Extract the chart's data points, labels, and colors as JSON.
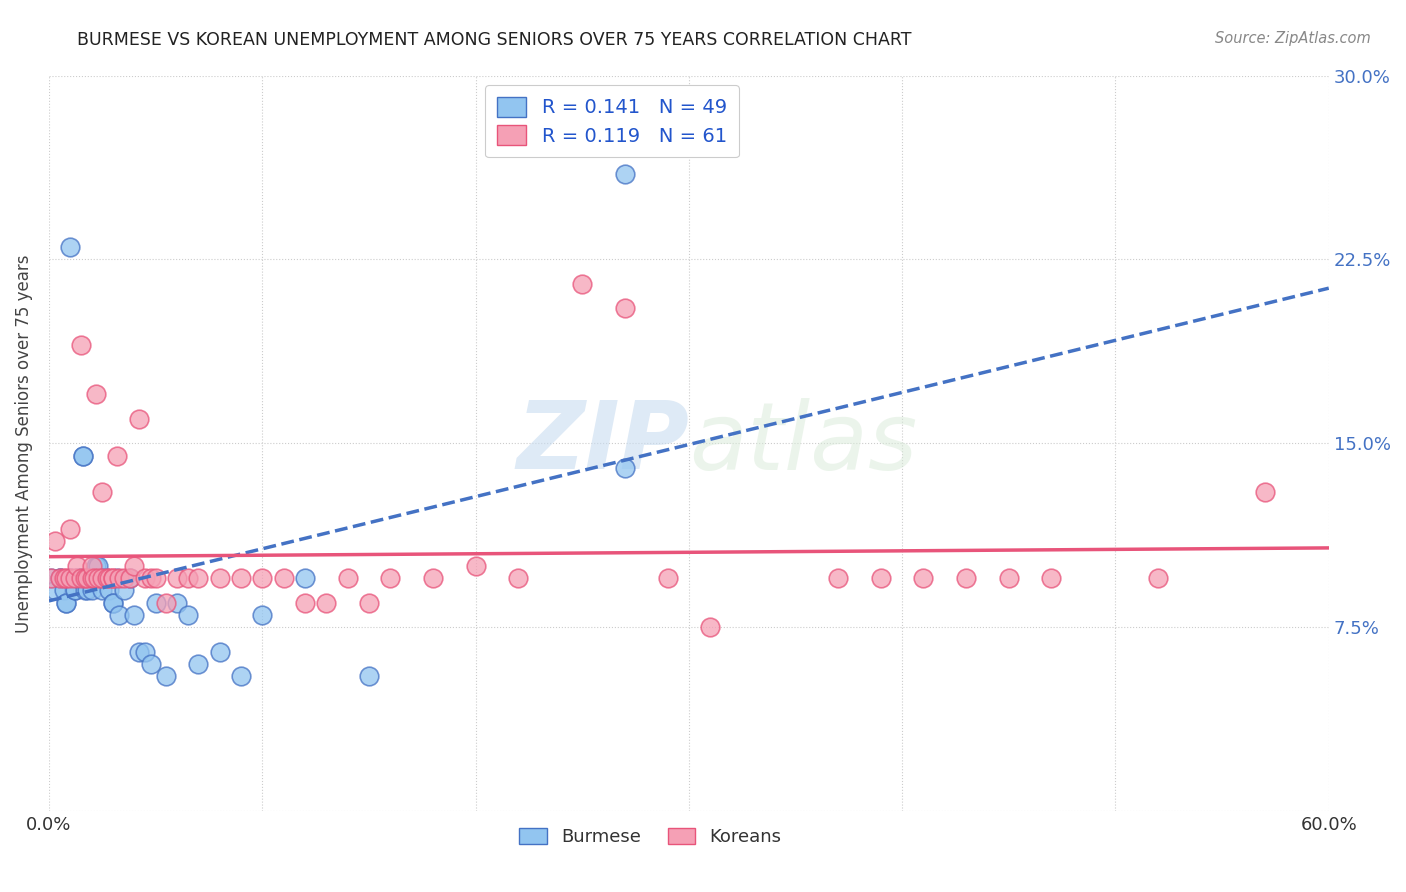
{
  "title": "BURMESE VS KOREAN UNEMPLOYMENT AMONG SENIORS OVER 75 YEARS CORRELATION CHART",
  "source": "Source: ZipAtlas.com",
  "ylabel": "Unemployment Among Seniors over 75 years",
  "xlabel_burmese": "Burmese",
  "xlabel_koreans": "Koreans",
  "xlim": [
    0.0,
    0.6
  ],
  "ylim": [
    0.0,
    0.3
  ],
  "xtick_positions": [
    0.0,
    0.1,
    0.2,
    0.3,
    0.4,
    0.5,
    0.6
  ],
  "xtick_labels": [
    "0.0%",
    "",
    "",
    "",
    "",
    "",
    "60.0%"
  ],
  "ytick_positions": [
    0.0,
    0.075,
    0.15,
    0.225,
    0.3
  ],
  "ytick_labels_right": [
    "",
    "7.5%",
    "15.0%",
    "22.5%",
    "30.0%"
  ],
  "burmese_R": 0.141,
  "burmese_N": 49,
  "korean_R": 0.119,
  "korean_N": 61,
  "burmese_color": "#92C5F0",
  "korean_color": "#F5A0B5",
  "trend_burmese_color": "#4472C4",
  "trend_korean_color": "#E8547A",
  "burmese_x": [
    0.001,
    0.003,
    0.005,
    0.005,
    0.007,
    0.008,
    0.008,
    0.01,
    0.01,
    0.012,
    0.012,
    0.013,
    0.015,
    0.015,
    0.016,
    0.016,
    0.017,
    0.018,
    0.02,
    0.02,
    0.021,
    0.022,
    0.023,
    0.025,
    0.025,
    0.027,
    0.028,
    0.03,
    0.03,
    0.032,
    0.033,
    0.035,
    0.038,
    0.04,
    0.042,
    0.045,
    0.048,
    0.05,
    0.055,
    0.06,
    0.065,
    0.07,
    0.08,
    0.09,
    0.1,
    0.12,
    0.15,
    0.27,
    0.27
  ],
  "burmese_y": [
    0.095,
    0.09,
    0.095,
    0.095,
    0.09,
    0.085,
    0.085,
    0.095,
    0.23,
    0.09,
    0.09,
    0.095,
    0.095,
    0.095,
    0.145,
    0.145,
    0.09,
    0.09,
    0.09,
    0.095,
    0.095,
    0.1,
    0.1,
    0.09,
    0.095,
    0.095,
    0.09,
    0.085,
    0.085,
    0.095,
    0.08,
    0.09,
    0.095,
    0.08,
    0.065,
    0.065,
    0.06,
    0.085,
    0.055,
    0.085,
    0.08,
    0.06,
    0.065,
    0.055,
    0.08,
    0.095,
    0.055,
    0.14,
    0.26
  ],
  "korean_x": [
    0.001,
    0.003,
    0.005,
    0.007,
    0.008,
    0.01,
    0.01,
    0.012,
    0.013,
    0.015,
    0.015,
    0.017,
    0.018,
    0.02,
    0.02,
    0.021,
    0.022,
    0.023,
    0.025,
    0.025,
    0.027,
    0.028,
    0.03,
    0.03,
    0.032,
    0.033,
    0.035,
    0.038,
    0.04,
    0.042,
    0.045,
    0.048,
    0.05,
    0.055,
    0.06,
    0.065,
    0.07,
    0.08,
    0.09,
    0.1,
    0.11,
    0.12,
    0.13,
    0.14,
    0.15,
    0.16,
    0.18,
    0.2,
    0.22,
    0.25,
    0.27,
    0.29,
    0.31,
    0.37,
    0.39,
    0.41,
    0.43,
    0.45,
    0.47,
    0.52,
    0.57
  ],
  "korean_y": [
    0.095,
    0.11,
    0.095,
    0.095,
    0.095,
    0.095,
    0.115,
    0.095,
    0.1,
    0.095,
    0.19,
    0.095,
    0.095,
    0.095,
    0.1,
    0.095,
    0.17,
    0.095,
    0.095,
    0.13,
    0.095,
    0.095,
    0.095,
    0.095,
    0.145,
    0.095,
    0.095,
    0.095,
    0.1,
    0.16,
    0.095,
    0.095,
    0.095,
    0.085,
    0.095,
    0.095,
    0.095,
    0.095,
    0.095,
    0.095,
    0.095,
    0.085,
    0.085,
    0.095,
    0.085,
    0.095,
    0.095,
    0.1,
    0.095,
    0.215,
    0.205,
    0.095,
    0.075,
    0.095,
    0.095,
    0.095,
    0.095,
    0.095,
    0.095,
    0.095,
    0.13
  ],
  "background_color": "#FFFFFF",
  "grid_color": "#CCCCCC",
  "watermark_color": "#E0E8F0"
}
